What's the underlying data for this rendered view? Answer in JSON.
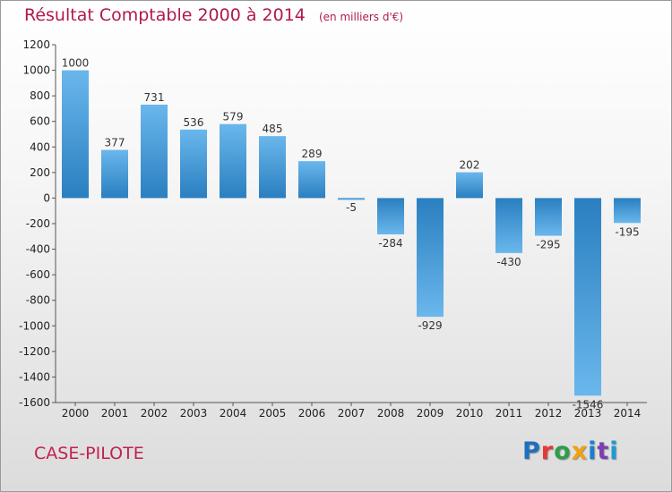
{
  "header": {
    "title": "Résultat Comptable 2000 à 2014",
    "subtitle": "(en milliers d'€)"
  },
  "footer": {
    "place": "CASE-PILOTE",
    "logo": "Proxiti",
    "logo_colors": [
      "#1f6fc0",
      "#e53935",
      "#2e9d4a",
      "#f2a20c",
      "#1a7fd0",
      "#7d3fb0",
      "#1c9ad6"
    ]
  },
  "colors": {
    "bar_light": "#6ab7ec",
    "bar_dark": "#2a7fc0",
    "axis": "#555555"
  },
  "chart_data": {
    "type": "bar",
    "title": "Résultat Comptable 2000 à 2014",
    "subtitle": "(en milliers d'€)",
    "categories": [
      "2000",
      "2001",
      "2002",
      "2003",
      "2004",
      "2005",
      "2006",
      "2007",
      "2008",
      "2009",
      "2010",
      "2011",
      "2012",
      "2013",
      "2014"
    ],
    "values": [
      1000,
      377,
      731,
      536,
      579,
      485,
      289,
      -5,
      -284,
      -929,
      202,
      -430,
      -295,
      -1546,
      -195
    ],
    "labels": [
      "1000",
      "377",
      "731",
      "536",
      "579",
      "485",
      "289",
      "-5",
      "-284",
      "-929",
      "202",
      "-430",
      "-295",
      "-1546",
      "-195"
    ],
    "ylim": [
      -1600,
      1200
    ],
    "yticks": [
      1200,
      1000,
      800,
      600,
      400,
      200,
      0,
      -200,
      -400,
      -600,
      -800,
      -1000,
      -1200,
      -1400,
      -1600
    ],
    "grid": false,
    "legend": "none"
  }
}
